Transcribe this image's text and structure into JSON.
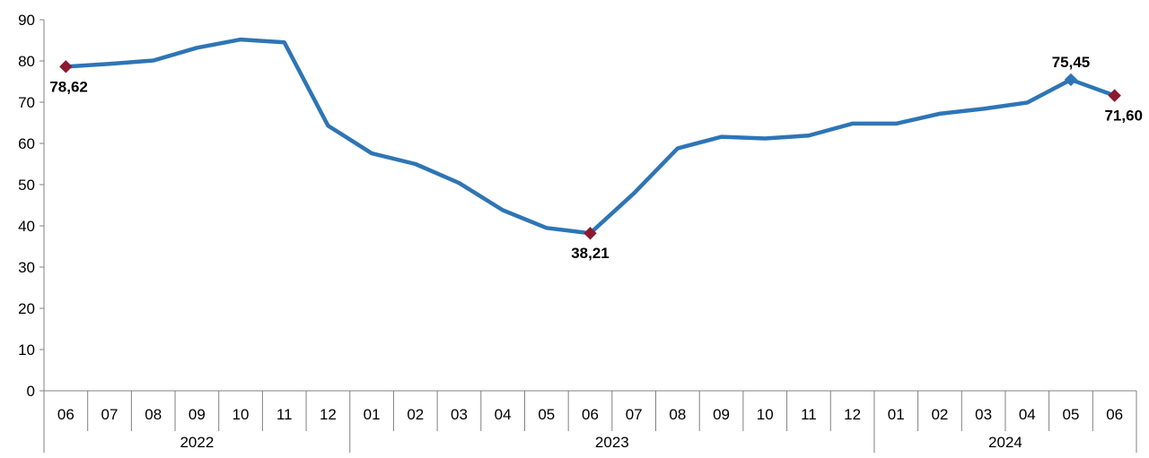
{
  "chart_data": {
    "type": "line",
    "title": "",
    "xlabel": "",
    "ylabel": "",
    "ylim": [
      0,
      90
    ],
    "yticks": [
      "0",
      "10",
      "20",
      "30",
      "40",
      "50",
      "60",
      "70",
      "80",
      "90"
    ],
    "grid": false,
    "legend": "none",
    "line_color": "#2E75B6",
    "marker_color": "#8B1A2F",
    "categories": [
      "06",
      "07",
      "08",
      "09",
      "10",
      "11",
      "12",
      "01",
      "02",
      "03",
      "04",
      "05",
      "06",
      "07",
      "08",
      "09",
      "10",
      "11",
      "12",
      "01",
      "02",
      "03",
      "04",
      "05",
      "06"
    ],
    "year_groups": [
      {
        "label": "2022",
        "start": 0,
        "end": 6
      },
      {
        "label": "2023",
        "start": 7,
        "end": 18
      },
      {
        "label": "2024",
        "start": 19,
        "end": 24
      }
    ],
    "series": [
      {
        "values": [
          78.62,
          79.3,
          80.1,
          83.2,
          85.2,
          84.5,
          64.3,
          57.6,
          55.0,
          50.4,
          43.8,
          39.5,
          38.21,
          47.9,
          58.8,
          61.6,
          61.2,
          61.9,
          64.8,
          64.8,
          67.2,
          68.4,
          69.9,
          75.45,
          71.6
        ]
      }
    ],
    "annotations": [
      {
        "index": 0,
        "text": "78,62",
        "position": "below",
        "marker": "diamond",
        "color": "#8B1A2F"
      },
      {
        "index": 12,
        "text": "38,21",
        "position": "below",
        "marker": "diamond",
        "color": "#8B1A2F"
      },
      {
        "index": 23,
        "text": "75,45",
        "position": "above",
        "marker": "diamond",
        "color": "#2E75B6"
      },
      {
        "index": 24,
        "text": "71,60",
        "position": "below",
        "marker": "diamond",
        "color": "#8B1A2F"
      }
    ]
  }
}
